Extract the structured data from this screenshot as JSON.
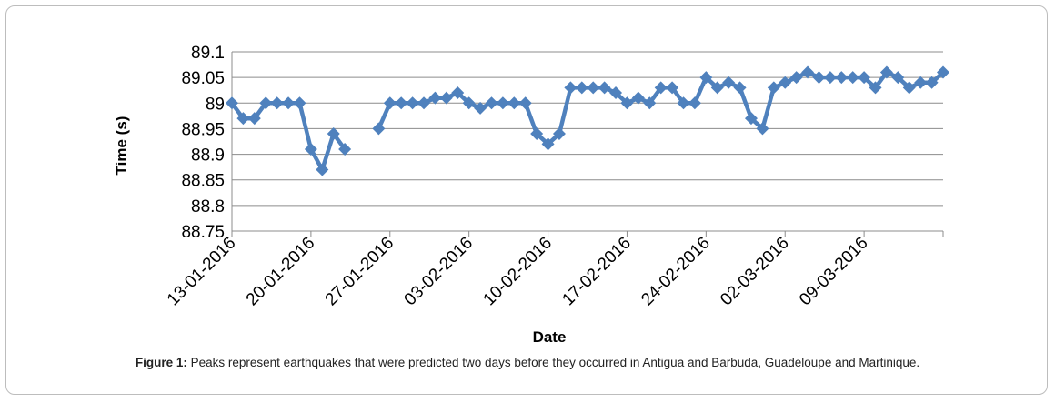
{
  "chart_data": {
    "type": "line",
    "title": "",
    "xlabel": "Date",
    "ylabel": "Time (s)",
    "ylim": [
      88.75,
      89.1
    ],
    "yticks": [
      "89.1",
      "89.05",
      "89",
      "88.95",
      "88.9",
      "88.85",
      "88.8",
      "88.75"
    ],
    "xlim": [
      "2016-01-13",
      "2016-03-16"
    ],
    "xtick_labels": [
      "13-01-2016",
      "20-01-2016",
      "27-01-2016",
      "03-02-2016",
      "10-02-2016",
      "17-02-2016",
      "24-02-2016",
      "02-03-2016",
      "09-03-2016"
    ],
    "grid": true,
    "line_color": "#4f81bd",
    "marker": "diamond",
    "series": [
      {
        "x": [
          "2016-01-13",
          "2016-01-14",
          "2016-01-15",
          "2016-01-16",
          "2016-01-17",
          "2016-01-18",
          "2016-01-19",
          "2016-01-20",
          "2016-01-21",
          "2016-01-22",
          "2016-01-23",
          "2016-01-26",
          "2016-01-27",
          "2016-01-28",
          "2016-01-29",
          "2016-01-30",
          "2016-01-31",
          "2016-02-01",
          "2016-02-02",
          "2016-02-03",
          "2016-02-04",
          "2016-02-05",
          "2016-02-06",
          "2016-02-07",
          "2016-02-08",
          "2016-02-09",
          "2016-02-10",
          "2016-02-11",
          "2016-02-12",
          "2016-02-13",
          "2016-02-14",
          "2016-02-15",
          "2016-02-16",
          "2016-02-17",
          "2016-02-18",
          "2016-02-19",
          "2016-02-20",
          "2016-02-21",
          "2016-02-22",
          "2016-02-23",
          "2016-02-24",
          "2016-02-25",
          "2016-02-26",
          "2016-02-27",
          "2016-02-28",
          "2016-02-29",
          "2016-03-01",
          "2016-03-02",
          "2016-03-03",
          "2016-03-04",
          "2016-03-05",
          "2016-03-06",
          "2016-03-07",
          "2016-03-08",
          "2016-03-09",
          "2016-03-10",
          "2016-03-11",
          "2016-03-12",
          "2016-03-13",
          "2016-03-14",
          "2016-03-15",
          "2016-03-16"
        ],
        "y": [
          89.0,
          88.97,
          88.97,
          89.0,
          89.0,
          89.0,
          89.0,
          88.91,
          88.87,
          88.94,
          88.91,
          88.95,
          89.0,
          89.0,
          89.0,
          89.0,
          89.01,
          89.01,
          89.02,
          89.0,
          88.99,
          89.0,
          89.0,
          89.0,
          89.0,
          88.94,
          88.92,
          88.94,
          89.03,
          89.03,
          89.03,
          89.03,
          89.02,
          89.0,
          89.01,
          89.0,
          89.03,
          89.03,
          89.0,
          89.0,
          89.05,
          89.03,
          89.04,
          89.03,
          88.97,
          88.95,
          89.03,
          89.04,
          89.05,
          89.06,
          89.05,
          89.05,
          89.05,
          89.05,
          89.05,
          89.03,
          89.06,
          89.05,
          89.03,
          89.04,
          89.04,
          89.06
        ]
      }
    ]
  },
  "caption": {
    "label": "Figure 1:",
    "text": " Peaks represent earthquakes that were predicted two days before they occurred in Antigua and Barbuda, Guadeloupe and Martinique."
  }
}
